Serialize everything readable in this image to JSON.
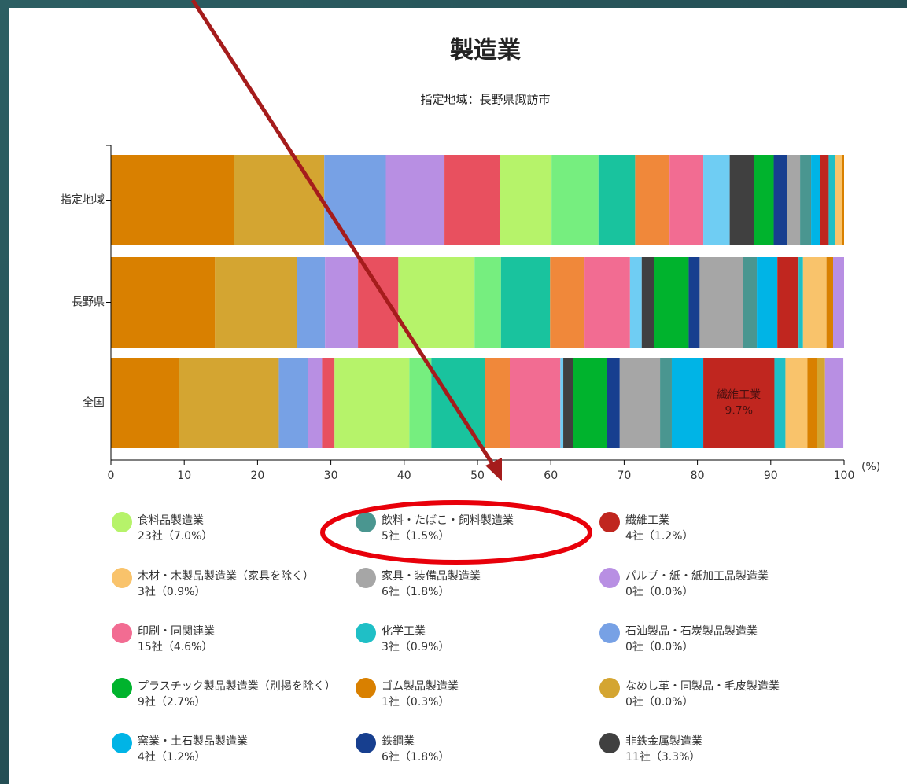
{
  "chart_data": {
    "type": "stacked-bar-horizontal",
    "title": "製造業",
    "subtitle": "指定地域：長野県諏訪市",
    "categories": [
      "指定地域",
      "長野県",
      "全国"
    ],
    "xlim": [
      0,
      100
    ],
    "xticks": [
      0,
      10,
      20,
      30,
      40,
      50,
      60,
      70,
      80,
      90,
      100
    ],
    "x_unit": "(%)",
    "series": [
      {
        "color": "#d98000",
        "values": [
          16.8,
          14.2,
          9.3
        ]
      },
      {
        "color": "#d4a531",
        "values": [
          12.3,
          11.2,
          13.6
        ]
      },
      {
        "color": "#77a1e5",
        "values": [
          8.4,
          3.8,
          4.0
        ]
      },
      {
        "color": "#b88fe3",
        "values": [
          8.0,
          4.5,
          1.9
        ]
      },
      {
        "color": "#e8505f",
        "values": [
          7.6,
          5.5,
          1.7
        ]
      },
      {
        "color": "#b6f36a",
        "values": [
          7.0,
          10.4,
          10.2
        ]
      },
      {
        "color": "#76ee7f",
        "values": [
          6.4,
          3.6,
          3.0
        ]
      },
      {
        "color": "#19c39e",
        "values": [
          5.0,
          6.7,
          7.3
        ]
      },
      {
        "color": "#f0883a",
        "values": [
          4.7,
          4.7,
          3.4
        ]
      },
      {
        "color": "#f26c92",
        "values": [
          4.6,
          6.2,
          6.9
        ]
      },
      {
        "color": "#6fcdf3",
        "values": [
          3.6,
          1.6,
          0.4
        ]
      },
      {
        "color": "#404040",
        "values": [
          3.3,
          1.7,
          1.3
        ]
      },
      {
        "color": "#00b32d",
        "values": [
          2.7,
          4.7,
          4.7
        ]
      },
      {
        "color": "#173f8f",
        "values": [
          1.8,
          1.5,
          1.7
        ]
      },
      {
        "color": "#a6a6a6",
        "values": [
          1.8,
          5.9,
          5.5
        ]
      },
      {
        "color": "#4a9690",
        "values": [
          1.5,
          1.9,
          1.6
        ]
      },
      {
        "color": "#00b4e6",
        "values": [
          1.2,
          2.8,
          4.3
        ]
      },
      {
        "color": "#c0261f",
        "values": [
          1.2,
          2.9,
          9.7
        ],
        "value_labels": [
          null,
          null,
          "9.7%"
        ]
      },
      {
        "color": "#1fbfc6",
        "values": [
          0.9,
          0.6,
          1.5
        ]
      },
      {
        "color": "#f9c36b",
        "values": [
          0.9,
          3.2,
          3.0
        ]
      },
      {
        "color": "#d98000",
        "values": [
          0.3,
          0.9,
          1.3
        ]
      },
      {
        "color": "#d4a531",
        "values": [
          0,
          0,
          1.1
        ]
      },
      {
        "color": "#b88fe3",
        "values": [
          0,
          1.5,
          2.5
        ]
      }
    ],
    "legend": [
      {
        "name": "食料品製造業",
        "label": "23社（7.0%）",
        "color": "#b6f36a"
      },
      {
        "name": "飲料・たばこ・飼料製造業",
        "label": "5社（1.5%）",
        "color": "#4a9690"
      },
      {
        "name": "繊維工業",
        "label": "4社（1.2%）",
        "color": "#c0261f"
      },
      {
        "name": "木材・木製品製造業（家具を除く）",
        "label": "3社（0.9%）",
        "color": "#f9c36b"
      },
      {
        "name": "家具・装備品製造業",
        "label": "6社（1.8%）",
        "color": "#a6a6a6"
      },
      {
        "name": "パルプ・紙・紙加工品製造業",
        "label": "0社（0.0%）",
        "color": "#b88fe3"
      },
      {
        "name": "印刷・同関連業",
        "label": "15社（4.6%）",
        "color": "#f26c92"
      },
      {
        "name": "化学工業",
        "label": "3社（0.9%）",
        "color": "#1fbfc6"
      },
      {
        "name": "石油製品・石炭製品製造業",
        "label": "0社（0.0%）",
        "color": "#77a1e5"
      },
      {
        "name": "プラスチック製品製造業（別掲を除く）",
        "label": "9社（2.7%）",
        "color": "#00b32d"
      },
      {
        "name": "ゴム製品製造業",
        "label": "1社（0.3%）",
        "color": "#d98000"
      },
      {
        "name": "なめし革・同製品・毛皮製造業",
        "label": "0社（0.0%）",
        "color": "#d4a531"
      },
      {
        "name": "窯業・土石製品製造業",
        "label": "4社（1.2%）",
        "color": "#00b4e6"
      },
      {
        "name": "鉄鋼業",
        "label": "6社（1.8%）",
        "color": "#173f8f"
      },
      {
        "name": "非鉄金属製造業",
        "label": "11社（3.3%）",
        "color": "#404040"
      }
    ]
  }
}
